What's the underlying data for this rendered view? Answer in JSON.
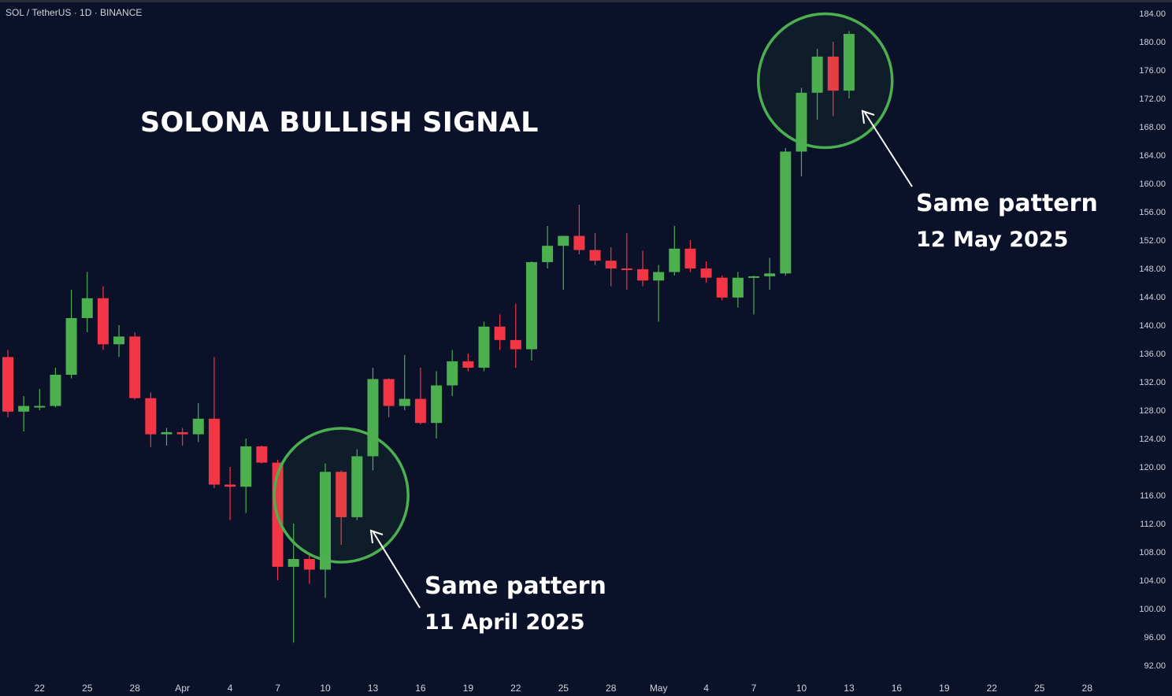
{
  "header": {
    "symbol_info": "SOL / TetherUS · 1D · BINANCE"
  },
  "annotations": {
    "title": "SOLONA BULLISH SIGNAL",
    "note_april_line1": "Same pattern",
    "note_april_line2": "11 April 2025",
    "note_may_line1": "Same pattern",
    "note_may_line2": "12 May 2025"
  },
  "colors": {
    "background": "#0a1128",
    "up": "#4caf50",
    "down": "#f23645",
    "highlight_circle": "#4caf50",
    "text": "#ffffff",
    "axis_text": "#d1d4dc"
  },
  "chart_data": {
    "type": "candlestick",
    "title": "SOLONA BULLISH SIGNAL",
    "ylim": [
      90,
      186
    ],
    "y_ticks": [
      "184.00",
      "180.00",
      "176.00",
      "172.00",
      "168.00",
      "164.00",
      "160.00",
      "156.00",
      "152.00",
      "148.00",
      "144.00",
      "140.00",
      "136.00",
      "132.00",
      "128.00",
      "124.00",
      "120.00",
      "116.00",
      "112.00",
      "108.00",
      "104.00",
      "100.00",
      "96.00",
      "92.00"
    ],
    "x_ticks": [
      {
        "label": "22",
        "day": 2
      },
      {
        "label": "25",
        "day": 5
      },
      {
        "label": "28",
        "day": 8
      },
      {
        "label": "Apr",
        "day": 11
      },
      {
        "label": "4",
        "day": 14
      },
      {
        "label": "7",
        "day": 17
      },
      {
        "label": "10",
        "day": 20
      },
      {
        "label": "13",
        "day": 23
      },
      {
        "label": "16",
        "day": 26
      },
      {
        "label": "19",
        "day": 29
      },
      {
        "label": "22",
        "day": 32
      },
      {
        "label": "25",
        "day": 35
      },
      {
        "label": "28",
        "day": 38
      },
      {
        "label": "May",
        "day": 41
      },
      {
        "label": "4",
        "day": 44
      },
      {
        "label": "7",
        "day": 47
      },
      {
        "label": "10",
        "day": 50
      },
      {
        "label": "13",
        "day": 53
      },
      {
        "label": "16",
        "day": 56
      },
      {
        "label": "19",
        "day": 59
      },
      {
        "label": "22",
        "day": 62
      },
      {
        "label": "25",
        "day": 65
      },
      {
        "label": "28",
        "day": 68
      }
    ],
    "candles": [
      {
        "day": 0,
        "open": 135.5,
        "high": 136.5,
        "low": 127.0,
        "close": 127.8
      },
      {
        "day": 1,
        "open": 127.8,
        "high": 130.0,
        "low": 125.0,
        "close": 128.6
      },
      {
        "day": 2,
        "open": 128.6,
        "high": 131.0,
        "low": 128.0,
        "close": 128.6
      },
      {
        "day": 3,
        "open": 128.6,
        "high": 134.0,
        "low": 128.4,
        "close": 133.0
      },
      {
        "day": 4,
        "open": 133.0,
        "high": 145.0,
        "low": 132.5,
        "close": 141.0
      },
      {
        "day": 5,
        "open": 141.0,
        "high": 147.5,
        "low": 139.0,
        "close": 143.8
      },
      {
        "day": 6,
        "open": 143.8,
        "high": 145.5,
        "low": 136.5,
        "close": 137.3
      },
      {
        "day": 7,
        "open": 137.3,
        "high": 140.0,
        "low": 135.5,
        "close": 138.4
      },
      {
        "day": 8,
        "open": 138.4,
        "high": 139.0,
        "low": 129.5,
        "close": 129.7
      },
      {
        "day": 9,
        "open": 129.7,
        "high": 130.5,
        "low": 122.8,
        "close": 124.6
      },
      {
        "day": 10,
        "open": 124.6,
        "high": 125.5,
        "low": 123.0,
        "close": 124.9
      },
      {
        "day": 11,
        "open": 124.9,
        "high": 125.5,
        "low": 123.0,
        "close": 124.6
      },
      {
        "day": 12,
        "open": 124.6,
        "high": 129.0,
        "low": 123.5,
        "close": 126.8
      },
      {
        "day": 13,
        "open": 126.8,
        "high": 135.5,
        "low": 117.0,
        "close": 117.5
      },
      {
        "day": 14,
        "open": 117.5,
        "high": 120.0,
        "low": 112.5,
        "close": 117.2
      },
      {
        "day": 15,
        "open": 117.2,
        "high": 124.0,
        "low": 113.5,
        "close": 122.9
      },
      {
        "day": 16,
        "open": 122.9,
        "high": 123.0,
        "low": 120.5,
        "close": 120.6
      },
      {
        "day": 17,
        "open": 120.6,
        "high": 121.0,
        "low": 104.0,
        "close": 105.9
      },
      {
        "day": 18,
        "open": 105.9,
        "high": 112.0,
        "low": 95.2,
        "close": 107.0
      },
      {
        "day": 19,
        "open": 107.0,
        "high": 107.5,
        "low": 103.5,
        "close": 105.5
      },
      {
        "day": 20,
        "open": 105.5,
        "high": 120.5,
        "low": 101.5,
        "close": 119.3
      },
      {
        "day": 21,
        "open": 119.3,
        "high": 119.5,
        "low": 109.0,
        "close": 112.9
      },
      {
        "day": 22,
        "open": 112.9,
        "high": 122.5,
        "low": 112.5,
        "close": 121.5
      },
      {
        "day": 23,
        "open": 121.5,
        "high": 134.0,
        "low": 119.5,
        "close": 132.4
      },
      {
        "day": 24,
        "open": 132.4,
        "high": 132.5,
        "low": 127.0,
        "close": 128.6
      },
      {
        "day": 25,
        "open": 128.6,
        "high": 135.8,
        "low": 128.0,
        "close": 129.6
      },
      {
        "day": 26,
        "open": 129.6,
        "high": 134.0,
        "low": 126.0,
        "close": 126.2
      },
      {
        "day": 27,
        "open": 126.2,
        "high": 133.5,
        "low": 124.0,
        "close": 131.5
      },
      {
        "day": 28,
        "open": 131.5,
        "high": 136.5,
        "low": 130.0,
        "close": 134.9
      },
      {
        "day": 29,
        "open": 134.9,
        "high": 136.0,
        "low": 133.5,
        "close": 134.0
      },
      {
        "day": 30,
        "open": 134.0,
        "high": 140.5,
        "low": 133.5,
        "close": 139.8
      },
      {
        "day": 31,
        "open": 139.8,
        "high": 141.5,
        "low": 136.5,
        "close": 137.9
      },
      {
        "day": 32,
        "open": 137.9,
        "high": 143.0,
        "low": 134.0,
        "close": 136.6
      },
      {
        "day": 33,
        "open": 136.6,
        "high": 149.0,
        "low": 135.0,
        "close": 148.9
      },
      {
        "day": 34,
        "open": 148.9,
        "high": 154.0,
        "low": 148.0,
        "close": 151.2
      },
      {
        "day": 35,
        "open": 151.2,
        "high": 152.5,
        "low": 145.0,
        "close": 152.6
      },
      {
        "day": 36,
        "open": 152.6,
        "high": 157.0,
        "low": 150.0,
        "close": 150.6
      },
      {
        "day": 37,
        "open": 150.6,
        "high": 153.0,
        "low": 148.5,
        "close": 149.1
      },
      {
        "day": 38,
        "open": 149.1,
        "high": 151.0,
        "low": 145.5,
        "close": 148.0
      },
      {
        "day": 39,
        "open": 148.0,
        "high": 153.0,
        "low": 145.0,
        "close": 147.9
      },
      {
        "day": 40,
        "open": 147.9,
        "high": 150.5,
        "low": 145.5,
        "close": 146.3
      },
      {
        "day": 41,
        "open": 146.3,
        "high": 148.5,
        "low": 140.5,
        "close": 147.5
      },
      {
        "day": 42,
        "open": 147.5,
        "high": 154.0,
        "low": 147.0,
        "close": 150.8
      },
      {
        "day": 43,
        "open": 150.8,
        "high": 152.0,
        "low": 147.5,
        "close": 148.0
      },
      {
        "day": 44,
        "open": 148.0,
        "high": 149.0,
        "low": 146.0,
        "close": 146.7
      },
      {
        "day": 45,
        "open": 146.7,
        "high": 147.0,
        "low": 143.5,
        "close": 143.9
      },
      {
        "day": 46,
        "open": 143.9,
        "high": 147.5,
        "low": 142.5,
        "close": 146.7
      },
      {
        "day": 47,
        "open": 146.7,
        "high": 147.0,
        "low": 141.5,
        "close": 146.9
      },
      {
        "day": 48,
        "open": 146.9,
        "high": 149.5,
        "low": 145.0,
        "close": 147.3
      },
      {
        "day": 49,
        "open": 147.3,
        "high": 165.0,
        "low": 147.0,
        "close": 164.5
      },
      {
        "day": 50,
        "open": 164.5,
        "high": 173.5,
        "low": 161.0,
        "close": 172.8
      },
      {
        "day": 51,
        "open": 172.8,
        "high": 179.0,
        "low": 169.0,
        "close": 177.9
      },
      {
        "day": 52,
        "open": 177.9,
        "high": 180.0,
        "low": 169.5,
        "close": 173.1
      },
      {
        "day": 53,
        "open": 173.1,
        "high": 181.5,
        "low": 172.0,
        "close": 181.1
      }
    ],
    "highlights": [
      {
        "center_day": 21.0,
        "center_price": 116.0,
        "label": "11 April 2025"
      },
      {
        "center_day": 51.5,
        "center_price": 174.5,
        "label": "12 May 2025"
      }
    ]
  }
}
